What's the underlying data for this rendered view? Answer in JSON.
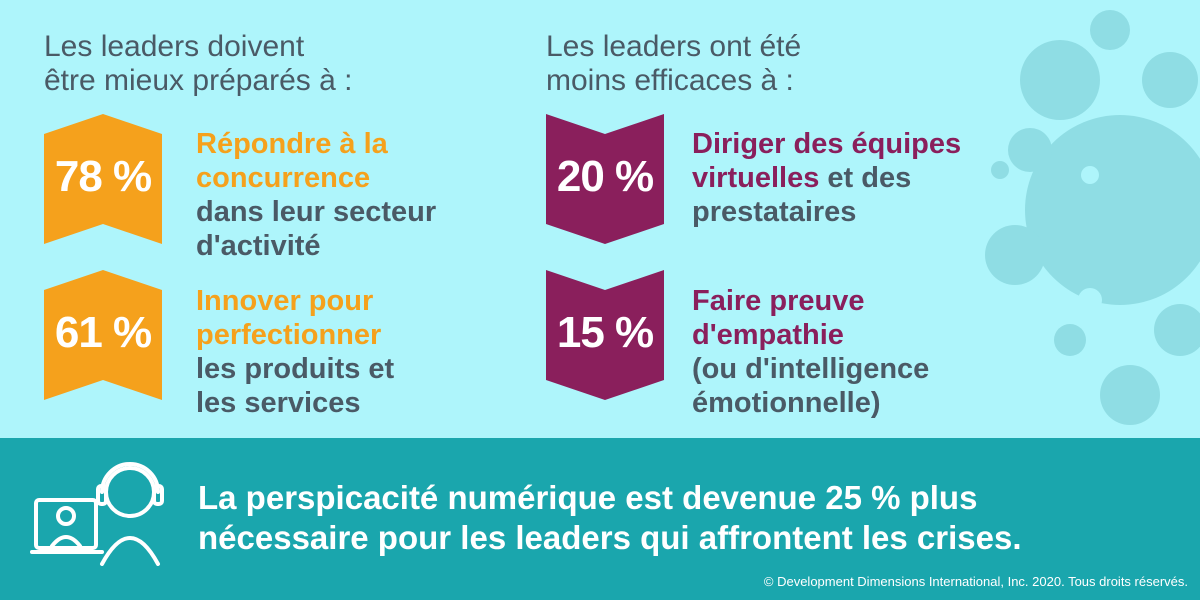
{
  "colors": {
    "background": "#aef5fb",
    "orange": "#f5a11c",
    "purple": "#8a1f5c",
    "teal": "#1aa6ad",
    "gray_text": "#4a5a66"
  },
  "left": {
    "heading": "Les leaders doivent\nêtre mieux préparés à :",
    "items": [
      {
        "percent": "78 %",
        "highlight": "Répondre à la\nconcurrence",
        "rest": "dans leur secteur\nd'activité"
      },
      {
        "percent": "61 %",
        "highlight": "Innover pour\nperfectionner",
        "rest": "les produits et\nles services"
      }
    ]
  },
  "right": {
    "heading": "Les leaders ont été\nmoins efficaces à :",
    "items": [
      {
        "percent": "20 %",
        "highlight_a": "Diriger des équipes\nvirtuelles",
        "rest_a": " et des\nprestataires"
      },
      {
        "percent": "15 %",
        "highlight_a": "Faire preuve\nd'empathie",
        "rest_a": "\n(ou d'intelligence\némotionnelle)"
      }
    ]
  },
  "footer": {
    "icon": "video-call-headset-icon",
    "statement": "La perspicacité numérique est devenue 25 % plus\nnécessaire pour les leaders qui affrontent les crises.",
    "copyright": "© Development Dimensions International, Inc. 2020. Tous droits réservés."
  },
  "decoration": {
    "icon": "virus-splat-icon"
  }
}
